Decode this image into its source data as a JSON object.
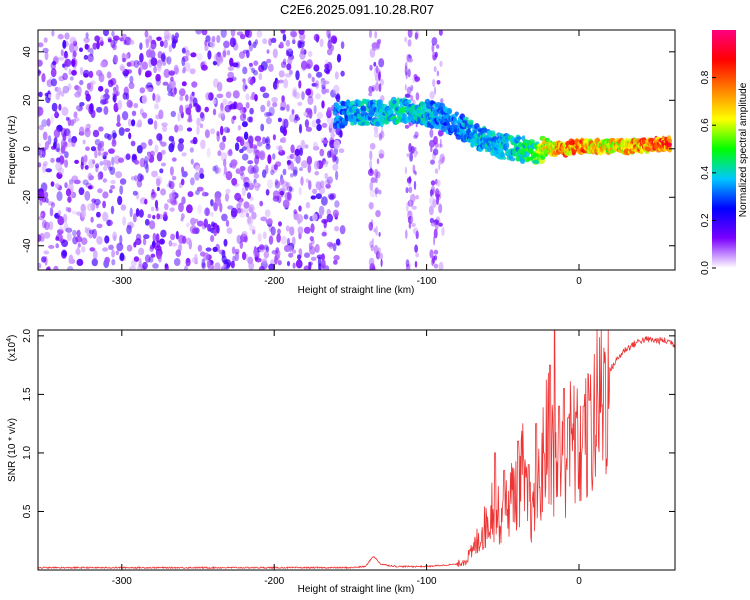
{
  "title": "C2E6.2025.091.10.28.R07",
  "chart_data": [
    {
      "type": "heatmap",
      "xlabel": "Height of straight line (km)",
      "ylabel": "Frequency (Hz)",
      "xlim": [
        -355,
        63
      ],
      "ylim": [
        -50,
        49
      ],
      "xticks": [
        -300,
        -200,
        -100,
        0
      ],
      "xtick_labels": [
        "-300",
        "-200",
        "-100",
        "0"
      ],
      "yticks": [
        -40,
        -20,
        0,
        20,
        40
      ],
      "ytick_labels": [
        "-40",
        "-20",
        "0",
        "20",
        "40"
      ],
      "colorbar": {
        "label": "Normalized spectral amplitude",
        "range": [
          0.0,
          1.0
        ],
        "ticks": [
          0.0,
          0.2,
          0.4,
          0.6,
          0.8
        ],
        "tick_labels": [
          "0.0",
          "0.2",
          "0.4",
          "0.6",
          "0.8"
        ],
        "colormap": [
          "#ffffff",
          "#7a00ff",
          "#0000ff",
          "#00c8ff",
          "#00ff00",
          "#ffff00",
          "#ff8000",
          "#ff0000",
          "#ff0080"
        ]
      },
      "ridge": {
        "name": "",
        "x": [
          -160,
          -145,
          -130,
          -115,
          -100,
          -90,
          -80,
          -70,
          -60,
          -50,
          -40,
          -30,
          -20,
          -10,
          0,
          10,
          20,
          30,
          40,
          50,
          60
        ],
        "y": [
          14,
          15,
          15,
          16,
          15,
          13,
          10,
          6,
          3,
          1,
          0,
          -1,
          0,
          0,
          1,
          1,
          1,
          1,
          1,
          2,
          2
        ],
        "amplitude": [
          0.35,
          0.4,
          0.4,
          0.45,
          0.4,
          0.35,
          0.35,
          0.4,
          0.4,
          0.4,
          0.45,
          0.5,
          0.7,
          0.8,
          0.85,
          0.75,
          0.7,
          0.75,
          0.8,
          0.85,
          0.85
        ]
      },
      "noise_region": {
        "x_start": -355,
        "x_end": -155,
        "amplitude": 0.15
      },
      "noise_bands_x": [
        -133,
        -110,
        -93
      ]
    },
    {
      "type": "line",
      "xlabel": "Height of straight line (km)",
      "ylabel": "SNR (10 * v/v)",
      "y_multiplier": "(x10",
      "y_multiplier_exp": "4",
      "xlim": [
        -355,
        63
      ],
      "ylim": [
        0,
        2.05
      ],
      "xticks": [
        -300,
        -200,
        -100,
        0
      ],
      "xtick_labels": [
        "-300",
        "-200",
        "-100",
        "0"
      ],
      "yticks": [
        0.5,
        1.0,
        1.5,
        2.0
      ],
      "ytick_labels": [
        "0.5",
        "1.0",
        "1.5",
        "2.0"
      ],
      "color": "#ee3333",
      "series": [
        {
          "name": "",
          "x": [
            -355,
            -300,
            -250,
            -200,
            -150,
            -140,
            -135,
            -130,
            -120,
            -110,
            -100,
            -90,
            -80,
            -75,
            -70,
            -65,
            -60,
            -57,
            -55,
            -52,
            -50,
            -45,
            -40,
            -37,
            -35,
            -30,
            -25,
            -20,
            -15,
            -10,
            -5,
            0,
            5,
            10,
            15,
            20,
            25,
            30,
            35,
            40,
            45,
            50,
            55,
            60,
            63
          ],
          "y": [
            0.02,
            0.02,
            0.02,
            0.02,
            0.02,
            0.03,
            0.12,
            0.05,
            0.03,
            0.03,
            0.03,
            0.04,
            0.05,
            0.08,
            0.15,
            0.3,
            0.4,
            0.55,
            0.5,
            0.45,
            0.5,
            0.6,
            0.75,
            0.85,
            0.6,
            0.45,
            0.8,
            1.2,
            0.8,
            0.9,
            1.1,
            1.0,
            1.1,
            1.3,
            1.5,
            1.7,
            1.8,
            1.88,
            1.92,
            1.96,
            1.97,
            1.96,
            1.96,
            1.95,
            1.92
          ],
          "spikes": [
            {
              "x": -55,
              "y": 1.0
            },
            {
              "x": -49,
              "y": 0.85
            },
            {
              "x": -40,
              "y": 1.1
            },
            {
              "x": -33,
              "y": 0.9
            },
            {
              "x": -28,
              "y": 1.25
            },
            {
              "x": -23,
              "y": 1.0
            },
            {
              "x": -19,
              "y": 1.75
            },
            {
              "x": -16,
              "y": 2.05
            },
            {
              "x": -13,
              "y": 1.4
            },
            {
              "x": -10,
              "y": 1.55
            },
            {
              "x": -7,
              "y": 1.3
            },
            {
              "x": -2,
              "y": 1.35
            },
            {
              "x": 3,
              "y": 1.4
            },
            {
              "x": 7,
              "y": 1.45
            }
          ]
        }
      ]
    }
  ]
}
